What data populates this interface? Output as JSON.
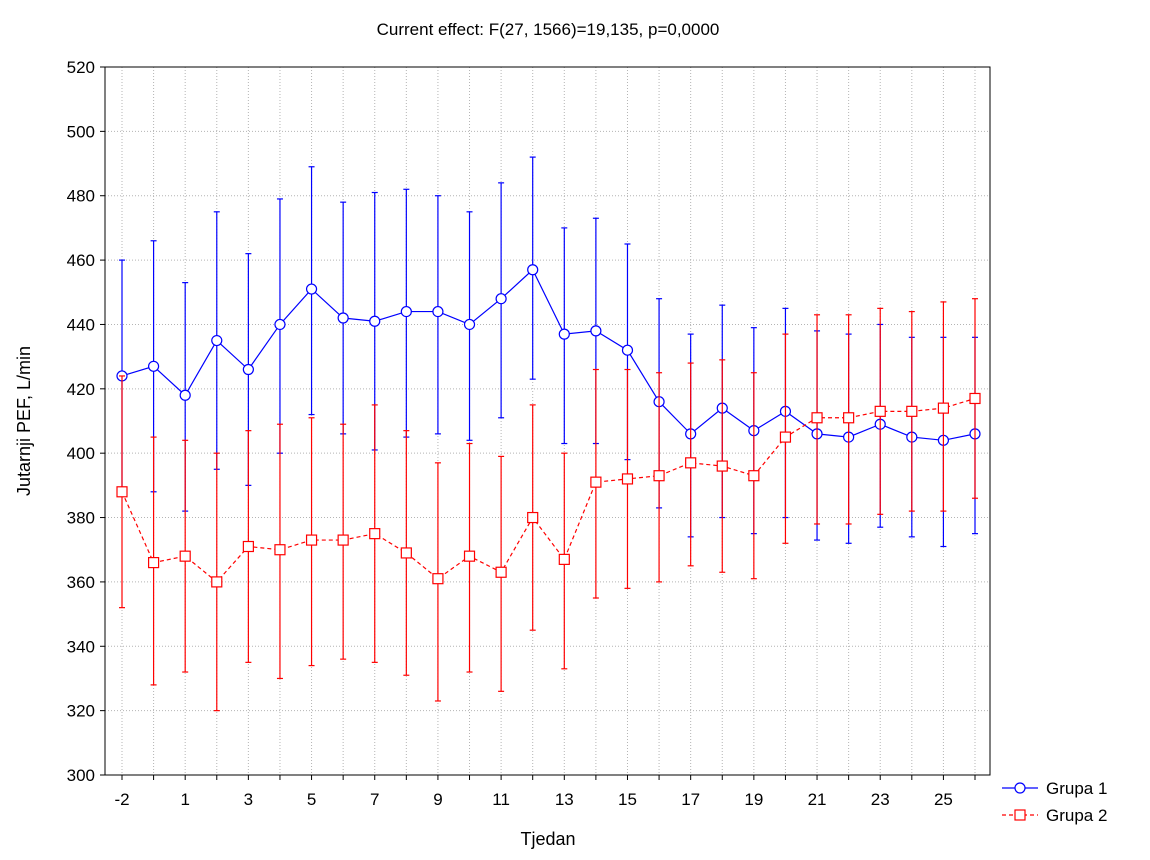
{
  "chart_data": {
    "type": "line",
    "title": "Current effect: F(27, 1566)=19,135, p=0,0000",
    "xlabel": "Tjedan",
    "ylabel": "Jutarnji PEF, L/min",
    "ylim": [
      300,
      520
    ],
    "yticks": [
      300,
      320,
      340,
      360,
      380,
      400,
      420,
      440,
      460,
      480,
      500,
      520
    ],
    "x": [
      -2,
      0,
      1,
      2,
      3,
      4,
      5,
      6,
      7,
      8,
      9,
      10,
      11,
      12,
      13,
      14,
      15,
      16,
      17,
      18,
      19,
      20,
      21,
      22,
      23,
      24,
      25,
      26
    ],
    "x_tick_labels": [
      "-2",
      "1",
      "3",
      "5",
      "7",
      "9",
      "11",
      "13",
      "15",
      "17",
      "19",
      "21",
      "23",
      "25"
    ],
    "grid": true,
    "legend_position": "bottom-right, outside plot",
    "series": [
      {
        "name": "Grupa 1",
        "color": "#0000ff",
        "marker": "circle",
        "line_style": "solid",
        "values": [
          424,
          427,
          418,
          435,
          426,
          440,
          451,
          442,
          441,
          444,
          444,
          440,
          448,
          457,
          437,
          438,
          432,
          416,
          406,
          414,
          407,
          413,
          406,
          405,
          409,
          405,
          404,
          406
        ],
        "lower": [
          388,
          388,
          382,
          395,
          390,
          400,
          412,
          406,
          401,
          405,
          406,
          404,
          411,
          423,
          403,
          403,
          398,
          383,
          374,
          380,
          375,
          380,
          373,
          372,
          377,
          374,
          371,
          375
        ],
        "upper": [
          460,
          466,
          453,
          475,
          462,
          479,
          489,
          478,
          481,
          482,
          480,
          475,
          484,
          492,
          470,
          473,
          465,
          448,
          437,
          446,
          439,
          445,
          438,
          437,
          440,
          436,
          436,
          436
        ]
      },
      {
        "name": "Grupa 2",
        "color": "#ff0000",
        "marker": "square",
        "line_style": "dashed",
        "values": [
          388,
          366,
          368,
          360,
          371,
          370,
          373,
          373,
          375,
          369,
          361,
          368,
          363,
          380,
          367,
          391,
          392,
          393,
          397,
          396,
          393,
          405,
          411,
          411,
          413,
          413,
          414,
          417
        ],
        "lower": [
          352,
          328,
          332,
          320,
          335,
          330,
          334,
          336,
          335,
          331,
          323,
          332,
          326,
          345,
          333,
          355,
          358,
          360,
          365,
          363,
          361,
          372,
          378,
          378,
          381,
          382,
          382,
          386
        ],
        "upper": [
          424,
          405,
          404,
          400,
          407,
          409,
          411,
          409,
          415,
          407,
          397,
          403,
          399,
          415,
          400,
          426,
          426,
          425,
          428,
          429,
          425,
          437,
          443,
          443,
          445,
          444,
          447,
          448
        ]
      }
    ]
  }
}
